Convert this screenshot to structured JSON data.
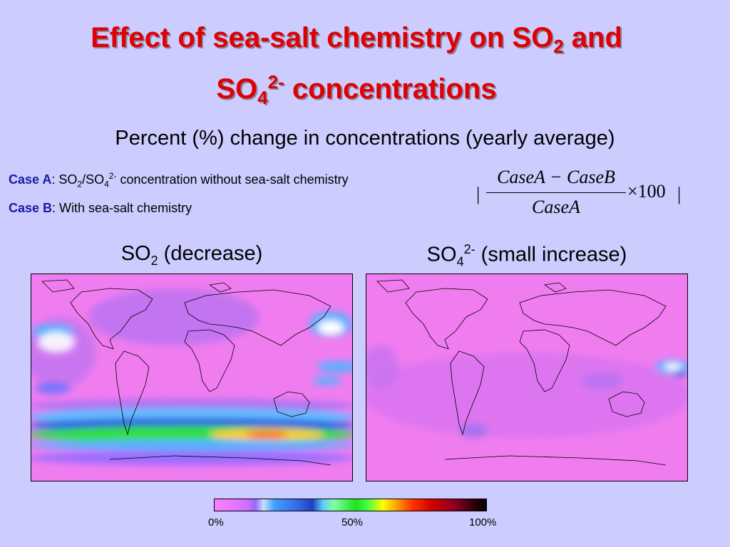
{
  "title": {
    "line1_pre": "Effect of sea-salt chemistry on SO",
    "line1_sub": "2",
    "line1_post": " and",
    "line2_pre": "SO",
    "line2_sub": "4",
    "line2_sup": "2-",
    "line2_post": " concentrations"
  },
  "subtitle": "Percent (%) change in concentrations (yearly average)",
  "case_a": {
    "label": "Case A",
    "t1": ": SO",
    "s1": "2",
    "t2": "/SO",
    "s2": "4",
    "sup": "2-",
    "t3": " concentration without sea-salt chemistry"
  },
  "case_b": {
    "label": "Case B",
    "text": ": With sea-salt chemistry"
  },
  "formula": {
    "numerator": "CaseA − CaseB",
    "denominator": "CaseA",
    "multiplier": "×100",
    "bar_left": "|",
    "bar_right": "|"
  },
  "maps": {
    "left": {
      "pre": "SO",
      "sub": "2",
      "post": " (decrease)"
    },
    "right": {
      "pre": "SO",
      "sub": "4",
      "sup": "2-",
      "post": " (small increase)"
    }
  },
  "colorbar": {
    "labels": [
      "0%",
      "50%",
      "100%"
    ]
  },
  "colors": {
    "background": "#ccccff",
    "title": "#e00000",
    "case_label": "#1a1aa6",
    "map_base": "#f07df0"
  }
}
